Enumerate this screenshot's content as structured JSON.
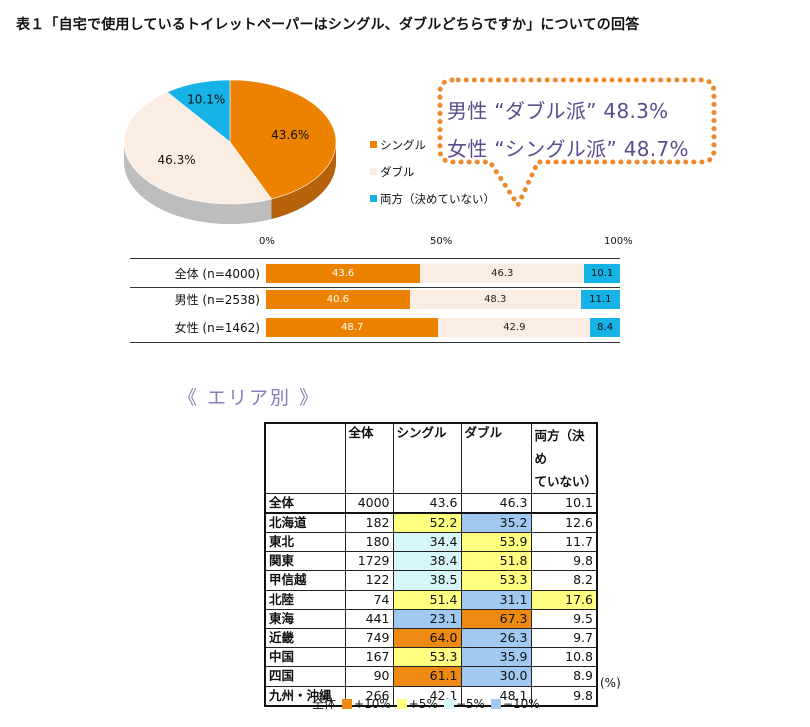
{
  "page_title": "表１「自宅で使用しているトイレットペーパーはシングル、ダブルどちらですか」についての回答",
  "colors": {
    "single": "#ec8200",
    "double": "#fcede3",
    "both": "#17b2e6",
    "plus10": "#ee8a14",
    "plus5": "#ffff80",
    "minus5": "#d6f6fa",
    "minus10": "#a0c8f0",
    "callout_border": "#ee8a2e",
    "callout_text": "#5a4c8f"
  },
  "callout": {
    "male": "男性 “ダブル派” 48.3%",
    "female": "女性 “シングル派” 48.7%"
  },
  "legend": {
    "single": "シングル",
    "double": "ダブル",
    "both": "両方（決めていない）"
  },
  "bar_axis": {
    "t0": "0%",
    "t50": "50%",
    "t100": "100%"
  },
  "area_heading": "《 エリア別 》",
  "table_headers": {
    "name": "",
    "total": "全体",
    "single": "シングル",
    "double": "ダブル",
    "both": "両方（決め\nていない）"
  },
  "unit": "(%)",
  "legend2": {
    "base": "全体",
    "plus10": "+10%",
    "plus5": "+5%",
    "minus5": "−5%",
    "minus10": "−10%"
  },
  "chart_data": [
    {
      "type": "pie",
      "categories": [
        "シングル",
        "ダブル",
        "両方（決めていない）"
      ],
      "values": [
        43.6,
        46.3,
        10.1
      ],
      "labels": [
        "43.6%",
        "46.3%",
        "10.1%"
      ]
    },
    {
      "type": "bar",
      "stacked": true,
      "orientation": "horizontal",
      "categories": [
        "全体 (n=4000)",
        "男性 (n=2538)",
        "女性 (n=1462)"
      ],
      "series": [
        {
          "name": "シングル",
          "values": [
            43.6,
            40.6,
            48.7
          ]
        },
        {
          "name": "ダブル",
          "values": [
            46.3,
            48.3,
            42.9
          ]
        },
        {
          "name": "両方（決めていない）",
          "values": [
            10.1,
            11.1,
            8.4
          ]
        }
      ],
      "xlim": [
        0,
        100
      ]
    },
    {
      "type": "table",
      "columns": [
        "",
        "全体",
        "シングル",
        "ダブル",
        "両方（決めていない）"
      ],
      "rows": [
        {
          "name": "全体",
          "n": "4000",
          "single": "43.6",
          "double": "46.3",
          "both": "10.1",
          "hl": [
            "",
            "",
            ""
          ]
        },
        {
          "name": "北海道",
          "n": "182",
          "single": "52.2",
          "double": "35.2",
          "both": "12.6",
          "hl": [
            "plus5",
            "minus10",
            ""
          ]
        },
        {
          "name": "東北",
          "n": "180",
          "single": "34.4",
          "double": "53.9",
          "both": "11.7",
          "hl": [
            "minus5",
            "plus5",
            ""
          ]
        },
        {
          "name": "関東",
          "n": "1729",
          "single": "38.4",
          "double": "51.8",
          "both": "9.8",
          "hl": [
            "minus5",
            "plus5",
            ""
          ]
        },
        {
          "name": "甲信越",
          "n": "122",
          "single": "38.5",
          "double": "53.3",
          "both": "8.2",
          "hl": [
            "minus5",
            "plus5",
            ""
          ]
        },
        {
          "name": "北陸",
          "n": "74",
          "single": "51.4",
          "double": "31.1",
          "both": "17.6",
          "hl": [
            "plus5",
            "minus10",
            "plus5"
          ]
        },
        {
          "name": "東海",
          "n": "441",
          "single": "23.1",
          "double": "67.3",
          "both": "9.5",
          "hl": [
            "minus10",
            "plus10",
            ""
          ]
        },
        {
          "name": "近畿",
          "n": "749",
          "single": "64.0",
          "double": "26.3",
          "both": "9.7",
          "hl": [
            "plus10",
            "minus10",
            ""
          ]
        },
        {
          "name": "中国",
          "n": "167",
          "single": "53.3",
          "double": "35.9",
          "both": "10.8",
          "hl": [
            "plus5",
            "minus10",
            ""
          ]
        },
        {
          "name": "四国",
          "n": "90",
          "single": "61.1",
          "double": "30.0",
          "both": "8.9",
          "hl": [
            "plus10",
            "minus10",
            ""
          ]
        },
        {
          "name": "九州・沖縄",
          "n": "266",
          "single": "42.1",
          "double": "48.1",
          "both": "9.8",
          "hl": [
            "",
            "",
            ""
          ]
        }
      ]
    }
  ]
}
